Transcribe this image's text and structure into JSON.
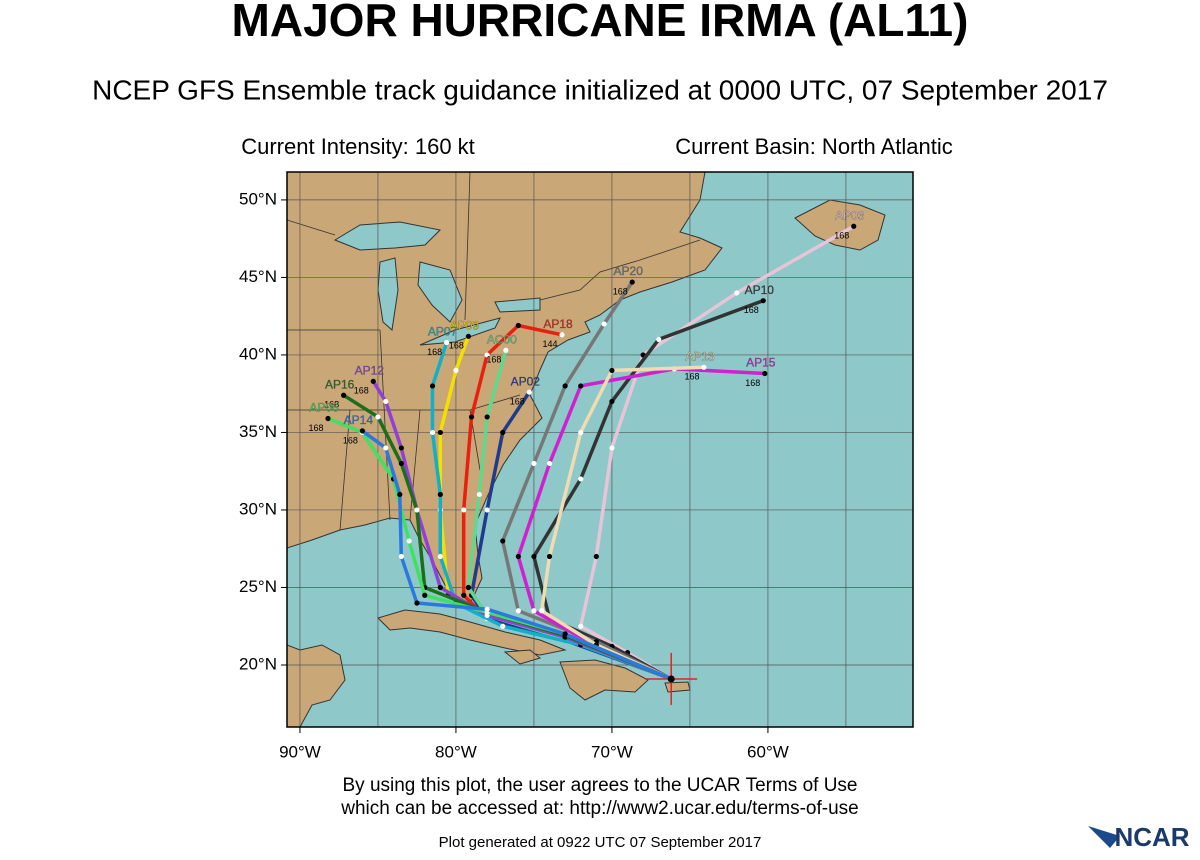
{
  "chart_data": {
    "type": "track-map",
    "title": "MAJOR HURRICANE IRMA (AL11)",
    "subtitle": "NCEP GFS Ensemble track guidance initialized at 0000 UTC, 07 September 2017",
    "intensity": "Current Intensity: 160 kt",
    "basin": "Current Basin: North Atlantic",
    "xlim": [
      -90.83,
      -50.7
    ],
    "ylim": [
      16.0,
      51.8
    ],
    "xticks": [
      {
        "value": -90,
        "label": "90°W"
      },
      {
        "value": -80,
        "label": "80°W"
      },
      {
        "value": -70,
        "label": "70°W"
      },
      {
        "value": -60,
        "label": "60°W"
      }
    ],
    "xminor": [
      -85,
      -75,
      -65,
      -55
    ],
    "yticks": [
      {
        "value": 20,
        "label": "20°N"
      },
      {
        "value": 25,
        "label": "25°N"
      },
      {
        "value": 30,
        "label": "30°N"
      },
      {
        "value": 35,
        "label": "35°N"
      },
      {
        "value": 40,
        "label": "40°N"
      },
      {
        "value": 45,
        "label": "45°N"
      },
      {
        "value": 50,
        "label": "50°N"
      }
    ],
    "grid": true,
    "current_position": {
      "lon": -66.2,
      "lat": 19.1,
      "color": "#e0251b"
    },
    "series": [
      {
        "name": "AP03",
        "color": "#e8c4d8",
        "end_hours": "168",
        "lon": [
          -66.2,
          -69,
          -72,
          -71,
          -70,
          -68,
          -62,
          -54.5
        ],
        "lat": [
          19.1,
          20.8,
          22.5,
          27,
          34,
          40,
          44,
          48.3
        ]
      },
      {
        "name": "AP10",
        "color": "#333333",
        "end_hours": "168",
        "lon": [
          -66.2,
          -70,
          -74,
          -75,
          -72,
          -70,
          -67,
          -60.3
        ],
        "lat": [
          19.1,
          21.2,
          23,
          27,
          32,
          37,
          41,
          43.5
        ]
      },
      {
        "name": "AP20",
        "color": "#777777",
        "end_hours": "168",
        "lon": [
          -66.2,
          -71,
          -76,
          -77,
          -75,
          -73,
          -70.5,
          -68.7
        ],
        "lat": [
          19.1,
          21.5,
          23.5,
          28,
          33,
          38,
          42,
          44.7
        ]
      },
      {
        "name": "AP15",
        "color": "#d020d0",
        "end_hours": "168",
        "lon": [
          -66.2,
          -71,
          -75,
          -76,
          -74,
          -72,
          -66,
          -60.2
        ],
        "lat": [
          19.1,
          21.2,
          23.5,
          27,
          33,
          38,
          39.1,
          38.8
        ]
      },
      {
        "name": "AP13",
        "color": "#f0dcb0",
        "end_hours": "168",
        "lon": [
          -66.2,
          -71,
          -74.5,
          -74,
          -72,
          -70,
          -64.1
        ],
        "lat": [
          19.1,
          21.3,
          23.5,
          27,
          35,
          39,
          39.2
        ]
      },
      {
        "name": "AP18",
        "color": "#e82010",
        "end_hours": "144",
        "lon": [
          -66.2,
          -73,
          -78,
          -79.5,
          -79.5,
          -79,
          -78,
          -76,
          -73.2
        ],
        "lat": [
          19.1,
          21.8,
          23,
          24.5,
          30,
          36,
          40,
          41.9,
          41.3
        ]
      },
      {
        "name": "AP02",
        "color": "#203a8c",
        "end_hours": "168",
        "lon": [
          -66.2,
          -73,
          -78,
          -79,
          -78,
          -77,
          -75.3
        ],
        "lat": [
          19.1,
          21.6,
          23,
          24.5,
          30,
          35,
          37.6
        ]
      },
      {
        "name": "AC00",
        "color": "#60d890",
        "end_hours": "168",
        "lon": [
          -66.2,
          -73,
          -78,
          -79.2,
          -78.5,
          -78,
          -76.8
        ],
        "lat": [
          19.1,
          21.7,
          23.2,
          25,
          31,
          36,
          40.3
        ]
      },
      {
        "name": "AP09",
        "color": "#f4e000",
        "end_hours": "168",
        "lon": [
          -66.2,
          -73,
          -78,
          -80.5,
          -81,
          -81,
          -80,
          -79.2
        ],
        "lat": [
          19.1,
          22,
          23.3,
          24.5,
          30,
          35,
          39,
          41.2
        ]
      },
      {
        "name": "AP07",
        "color": "#10b0c8",
        "end_hours": "168",
        "lon": [
          -66.2,
          -72,
          -77,
          -80,
          -81,
          -81,
          -81.5,
          -81.5,
          -80.6
        ],
        "lat": [
          19.1,
          21.3,
          22.5,
          24,
          27,
          31,
          35,
          38,
          40.8
        ]
      },
      {
        "name": "AP12",
        "color": "#9040d8",
        "end_hours": "168",
        "lon": [
          -66.2,
          -73,
          -78,
          -81,
          -82.5,
          -83.5,
          -84.5,
          -85.3
        ],
        "lat": [
          19.1,
          21.8,
          23.2,
          25,
          30,
          34,
          37,
          38.3
        ]
      },
      {
        "name": "AP16",
        "color": "#1c6e1c",
        "end_hours": "168",
        "lon": [
          -66.2,
          -73,
          -78,
          -82,
          -82.5,
          -83.5,
          -85,
          -87.2
        ],
        "lat": [
          19.1,
          21.9,
          23.4,
          25,
          30,
          33,
          36,
          37.4
        ]
      },
      {
        "name": "AP06",
        "color": "#40e060",
        "end_hours": "168",
        "lon": [
          -66.2,
          -73,
          -78,
          -82,
          -83,
          -84,
          -86,
          -88.2
        ],
        "lat": [
          19.1,
          22,
          23.4,
          24.5,
          28,
          32,
          35,
          35.9
        ]
      },
      {
        "name": "AP14",
        "color": "#2a78e0",
        "end_hours": "168",
        "lon": [
          -66.2,
          -73,
          -78,
          -82.5,
          -83.5,
          -83.6,
          -84.5,
          -86
        ],
        "lat": [
          19.1,
          22,
          23.6,
          24,
          27,
          31,
          34,
          35.1
        ]
      }
    ],
    "footer": [
      "By using this plot, the user agrees to the UCAR Terms of Use",
      "which can be accessed at: http://www2.ucar.edu/terms-of-use"
    ],
    "generated": "Plot generated at 0922 UTC   07 September 2017",
    "logo": "NCAR"
  }
}
